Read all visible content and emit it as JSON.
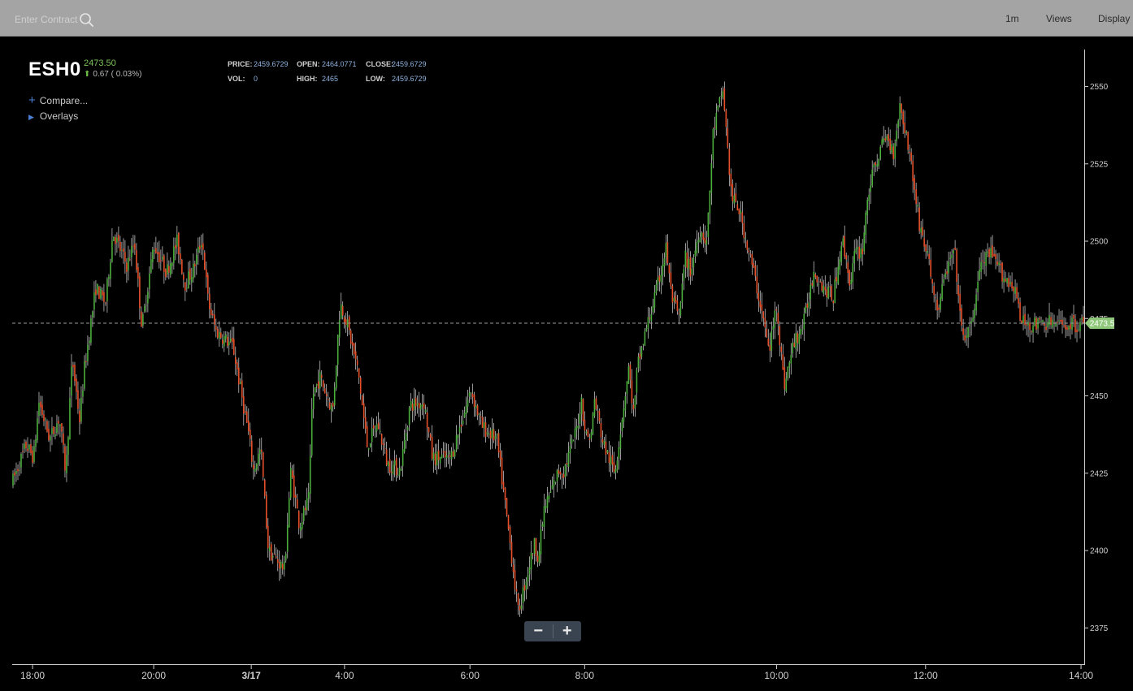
{
  "toolbar": {
    "search_placeholder": "Enter Contract",
    "interval": "1m",
    "views": "Views",
    "display": "Display"
  },
  "quote": {
    "symbol": "ESH0",
    "last": "2473.50",
    "change": "0.67 ( 0.03%)"
  },
  "stats": {
    "price_label": "PRICE:",
    "price": "2459.6729",
    "open_label": "OPEN:",
    "open": "2464.0771",
    "close_label": "CLOSE:",
    "close": "2459.6729",
    "vol_label": "VOL:",
    "vol": "0",
    "high_label": "HIGH:",
    "high": "2465",
    "low_label": "LOW:",
    "low": "2459.6729"
  },
  "sidebar": {
    "compare": "Compare...",
    "overlays": "Overlays"
  },
  "price_tag": "2473.5",
  "colors": {
    "up": "#4cae3c",
    "down": "#e8502a",
    "wick": "#ffffff",
    "tag": "#8fc77a"
  },
  "chart_data": {
    "type": "line",
    "y_ticks": [
      2550,
      2525,
      2500,
      2475,
      2450,
      2425,
      2400,
      2375
    ],
    "x_ticks": [
      {
        "label": "18:00",
        "t": 1.9
      },
      {
        "label": "20:00",
        "t": 13.2
      },
      {
        "label": "3/17",
        "t": 22.3
      },
      {
        "label": "4:00",
        "t": 31.0
      },
      {
        "label": "6:00",
        "t": 42.7
      },
      {
        "label": "8:00",
        "t": 53.4
      },
      {
        "label": "10:00",
        "t": 71.3
      },
      {
        "label": "12:00",
        "t": 85.2
      },
      {
        "label": "14:00",
        "t": 99.7
      }
    ],
    "ylim": [
      2363,
      2563
    ],
    "xlim": [
      0,
      100
    ],
    "current_price": 2473.5,
    "series": [
      {
        "x": [
          0,
          1.3,
          2,
          2.5,
          3.5,
          4.4,
          5,
          5.6,
          6.3,
          6.7,
          7.8,
          8.7,
          9.4,
          10.7,
          11.4,
          12.1,
          13.2,
          14.4,
          15.4,
          16.1,
          16.9,
          17.7,
          18.3,
          19,
          20.6,
          21.3,
          22,
          22.5,
          23.2,
          23.9,
          25.4,
          26,
          26.8,
          27.7,
          28,
          28.7,
          29.9,
          30.6,
          31.2,
          32.3,
          33.1,
          34.1,
          35,
          36.2,
          37.1,
          38.4,
          39.2,
          40.9,
          42.8,
          43.8,
          45.2,
          46.6,
          47.2,
          48.7,
          49.1,
          49.6,
          51,
          51.4,
          52.7,
          53.1,
          53.5,
          54,
          54.3,
          55.1,
          56.2,
          57.5,
          58,
          58.3,
          59.1,
          60.1,
          61,
          61.5,
          62.2,
          62.8,
          63.3,
          64.1,
          64.8,
          65.4,
          66.3,
          67.1,
          67.8,
          69.1,
          70,
          70.6,
          71.3,
          72,
          72.9,
          73.8,
          74.8,
          75.2,
          75.9,
          76.6,
          77.4,
          78.2,
          78.6,
          79.3,
          79.8,
          80.7,
          81.5,
          82.2,
          82.8,
          83.6,
          84.6,
          85.4,
          86.3,
          87.1,
          87.9,
          88.6,
          89.4,
          90.3,
          91.2,
          92.6,
          93.6,
          94,
          95.2,
          96,
          96.8,
          97.2,
          97.7,
          98.5,
          99.2,
          100
        ],
        "y": [
          2422,
          2434,
          2430,
          2448,
          2436,
          2443,
          2425,
          2462,
          2442,
          2458,
          2485,
          2480,
          2503,
          2492,
          2500,
          2472,
          2499,
          2490,
          2500,
          2486,
          2491,
          2501,
          2480,
          2471,
          2466,
          2452,
          2439,
          2426,
          2433,
          2400,
          2394,
          2426,
          2408,
          2417,
          2450,
          2456,
          2445,
          2480,
          2474,
          2457,
          2434,
          2441,
          2428,
          2426,
          2447,
          2448,
          2430,
          2430,
          2452,
          2440,
          2436,
          2398,
          2380,
          2402,
          2398,
          2413,
          2426,
          2425,
          2440,
          2449,
          2437,
          2437,
          2449,
          2435,
          2425,
          2459,
          2443,
          2459,
          2471,
          2484,
          2498,
          2482,
          2475,
          2495,
          2490,
          2504,
          2500,
          2536,
          2549,
          2514,
          2510,
          2491,
          2476,
          2464,
          2480,
          2453,
          2467,
          2473,
          2491,
          2488,
          2484,
          2482,
          2501,
          2486,
          2496,
          2497,
          2515,
          2527,
          2534,
          2529,
          2544,
          2531,
          2506,
          2495,
          2477,
          2490,
          2497,
          2469,
          2471,
          2492,
          2496,
          2488,
          2485,
          2474,
          2473,
          2473,
          2474,
          2473,
          2473,
          2473,
          2473,
          2473.5
        ]
      }
    ]
  }
}
